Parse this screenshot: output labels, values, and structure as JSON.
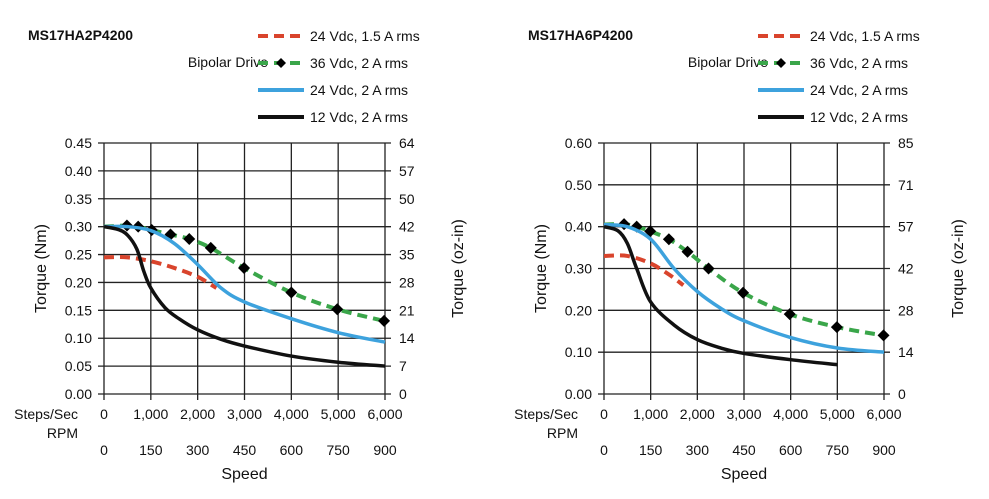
{
  "chart_data": [
    {
      "type": "line",
      "title": "MS17HA2P4200",
      "subtitle": "Bipolar Drive",
      "ylabel": "Torque (Nm)",
      "y2label": "Torque (oz-in)",
      "xlabel": "Speed",
      "x_row1_label": "Steps/Sec",
      "x_row2_label": "RPM",
      "xlim": [
        0,
        6000
      ],
      "ylim": [
        0,
        0.45
      ],
      "xticks": [
        "0",
        "1,000",
        "2,000",
        "3,000",
        "4,000",
        "5,000",
        "6,000"
      ],
      "rpm_ticks": [
        "0",
        "150",
        "300",
        "450",
        "600",
        "750",
        "900"
      ],
      "yticks": [
        "0.00",
        "0.05",
        "0.10",
        "0.15",
        "0.20",
        "0.25",
        "0.30",
        "0.35",
        "0.40",
        "0.45"
      ],
      "y2ticks": [
        "0",
        "7",
        "14",
        "21",
        "28",
        "35",
        "42",
        "50",
        "57",
        "64"
      ],
      "legend": "top-right",
      "grid": true,
      "series": [
        {
          "name": "24 Vdc, 1.5 A rms",
          "color": "#d9442c",
          "style": "dashed",
          "x": [
            0,
            500,
            1000,
            1500,
            2000,
            2400
          ],
          "y": [
            0.245,
            0.245,
            0.238,
            0.226,
            0.21,
            0.19
          ]
        },
        {
          "name": "36 Vdc, 2 A rms",
          "color": "#3aa64a",
          "style": "dashed-markers",
          "x": [
            0,
            490,
            730,
            1020,
            1420,
            1820,
            2280,
            2990,
            4000,
            4980,
            5980
          ],
          "y": [
            0.3,
            0.302,
            0.3,
            0.294,
            0.286,
            0.278,
            0.262,
            0.226,
            0.182,
            0.152,
            0.131
          ],
          "markers_from": 1
        },
        {
          "name": "24 Vdc, 2 A rms",
          "color": "#3da2dd",
          "style": "solid",
          "x": [
            0,
            500,
            1000,
            1500,
            2000,
            2500,
            3000,
            4000,
            5000,
            6000
          ],
          "y": [
            0.3,
            0.3,
            0.293,
            0.27,
            0.232,
            0.19,
            0.165,
            0.135,
            0.11,
            0.093
          ]
        },
        {
          "name": "12 Vdc, 2 A rms",
          "color": "#111111",
          "style": "solid",
          "x": [
            0,
            300,
            500,
            700,
            850,
            1000,
            1300,
            1600,
            2000,
            2500,
            3000,
            4000,
            5000,
            6000
          ],
          "y": [
            0.3,
            0.295,
            0.285,
            0.26,
            0.22,
            0.19,
            0.155,
            0.135,
            0.115,
            0.098,
            0.086,
            0.068,
            0.057,
            0.05
          ]
        }
      ]
    },
    {
      "type": "line",
      "title": "MS17HA6P4200",
      "subtitle": "Bipolar Drive",
      "ylabel": "Torque (Nm)",
      "y2label": "Torque (oz-in)",
      "xlabel": "Speed",
      "x_row1_label": "Steps/Sec",
      "x_row2_label": "RPM",
      "xlim": [
        0,
        6000
      ],
      "ylim": [
        0,
        0.6
      ],
      "xticks": [
        "0",
        "1,000",
        "2,000",
        "3,000",
        "4,000",
        "5,000",
        "6,000"
      ],
      "rpm_ticks": [
        "0",
        "150",
        "300",
        "450",
        "600",
        "750",
        "900"
      ],
      "yticks": [
        "0.00",
        "0.10",
        "0.20",
        "0.30",
        "0.40",
        "0.50",
        "0.60"
      ],
      "y2ticks": [
        "0",
        "14",
        "28",
        "42",
        "57",
        "71",
        "85"
      ],
      "legend": "top-right",
      "grid": true,
      "series": [
        {
          "name": "24 Vdc, 1.5 A rms",
          "color": "#d9442c",
          "style": "dashed",
          "x": [
            0,
            500,
            1000,
            1400,
            1700
          ],
          "y": [
            0.33,
            0.33,
            0.312,
            0.285,
            0.26
          ]
        },
        {
          "name": "36 Vdc, 2 A rms",
          "color": "#3aa64a",
          "style": "dashed-markers",
          "x": [
            0,
            430,
            700,
            990,
            1390,
            1790,
            2240,
            2980,
            3980,
            4990,
            5990
          ],
          "y": [
            0.405,
            0.406,
            0.4,
            0.389,
            0.37,
            0.34,
            0.3,
            0.242,
            0.191,
            0.16,
            0.14
          ],
          "markers_from": 1
        },
        {
          "name": "24 Vdc, 2 A rms",
          "color": "#3da2dd",
          "style": "solid",
          "x": [
            0,
            500,
            1000,
            1500,
            2000,
            2500,
            3000,
            4000,
            5000,
            6000
          ],
          "y": [
            0.405,
            0.4,
            0.37,
            0.3,
            0.245,
            0.205,
            0.175,
            0.135,
            0.11,
            0.1
          ]
        },
        {
          "name": "12 Vdc, 2 A rms",
          "color": "#111111",
          "style": "solid",
          "x": [
            0,
            300,
            500,
            700,
            1000,
            1500,
            2000,
            2500,
            3000,
            4000,
            5000
          ],
          "y": [
            0.4,
            0.39,
            0.36,
            0.3,
            0.22,
            0.165,
            0.13,
            0.11,
            0.097,
            0.082,
            0.07
          ]
        }
      ]
    }
  ]
}
